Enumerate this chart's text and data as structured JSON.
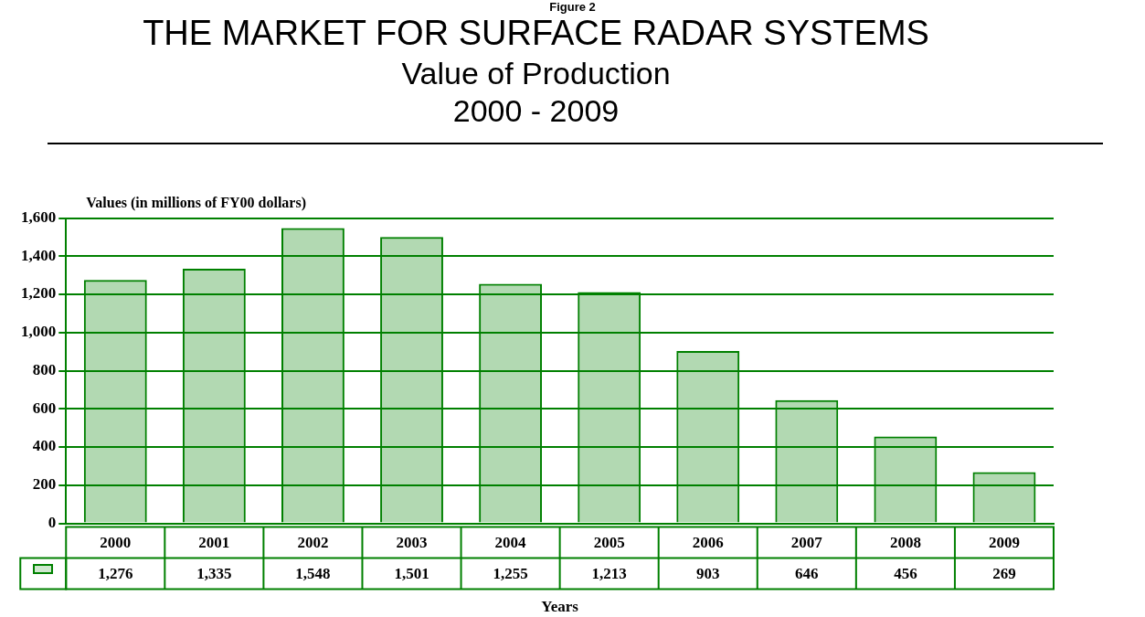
{
  "chart_data": {
    "type": "bar",
    "title": "THE MARKET FOR SURFACE RADAR SYSTEMS",
    "subtitle": "Value of Production\n2000 - 2009",
    "annotations": [
      "Figure 2"
    ],
    "ylabel": "Values (in millions of FY00 dollars)",
    "xlabel": "Years",
    "categories": [
      "2000",
      "2001",
      "2002",
      "2003",
      "2004",
      "2005",
      "2006",
      "2007",
      "2008",
      "2009"
    ],
    "values": [
      1276,
      1335,
      1548,
      1501,
      1255,
      1213,
      903,
      646,
      456,
      269
    ],
    "color": "#008000",
    "ylim": [
      0,
      1600
    ],
    "yticks": [
      {
        "value": 0,
        "label": "0"
      },
      {
        "value": 200,
        "label": "200"
      },
      {
        "value": 400,
        "label": "400"
      },
      {
        "value": 600,
        "label": "600"
      },
      {
        "value": 800,
        "label": "800"
      },
      {
        "value": 1000,
        "label": "1,000"
      },
      {
        "value": 1200,
        "label": "1,200"
      },
      {
        "value": 1400,
        "label": "1,400"
      },
      {
        "value": 1600,
        "label": "1,600"
      }
    ],
    "grid": "y",
    "legend": false,
    "data_labels": true,
    "value_labels": [
      "1,276",
      "1,335",
      "1,548",
      "1,501",
      "1,255",
      "1,213",
      "903",
      "646",
      "456",
      "269"
    ]
  }
}
